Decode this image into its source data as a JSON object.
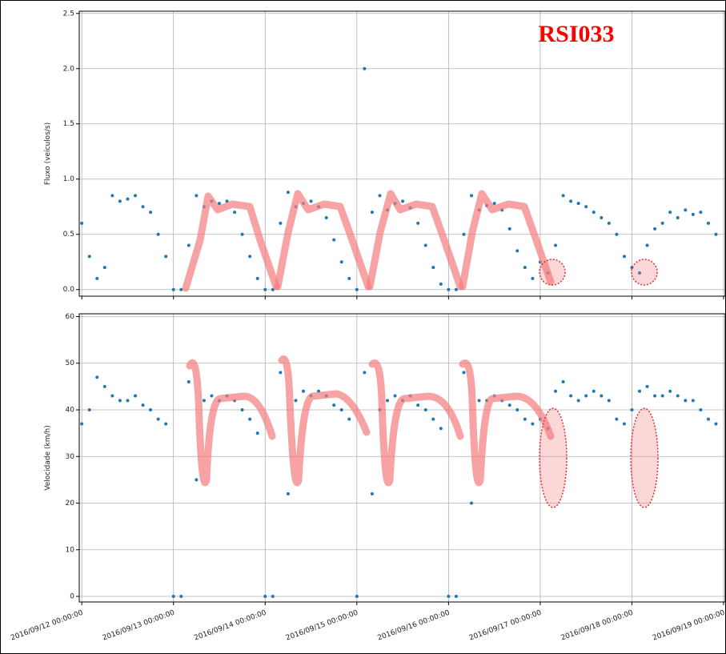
{
  "chart_data": [
    {
      "type": "scatter",
      "annotation": "RSI033",
      "ylabel": "Fluxo (veículos/s)",
      "x": [
        "2016/09/12 00:00:00",
        "2016/09/12 02:00:00",
        "2016/09/12 04:00:00",
        "2016/09/12 06:00:00",
        "2016/09/12 08:00:00",
        "2016/09/12 10:00:00",
        "2016/09/12 12:00:00",
        "2016/09/12 14:00:00",
        "2016/09/12 16:00:00",
        "2016/09/12 18:00:00",
        "2016/09/12 20:00:00",
        "2016/09/12 22:00:00",
        "2016/09/13 00:00:00",
        "2016/09/13 02:00:00",
        "2016/09/13 04:00:00",
        "2016/09/13 06:00:00",
        "2016/09/13 08:00:00",
        "2016/09/13 10:00:00",
        "2016/09/13 12:00:00",
        "2016/09/13 14:00:00",
        "2016/09/13 16:00:00",
        "2016/09/13 18:00:00",
        "2016/09/13 20:00:00",
        "2016/09/13 22:00:00",
        "2016/09/14 00:00:00",
        "2016/09/14 02:00:00",
        "2016/09/14 04:00:00",
        "2016/09/14 06:00:00",
        "2016/09/14 08:00:00",
        "2016/09/14 10:00:00",
        "2016/09/14 12:00:00",
        "2016/09/14 14:00:00",
        "2016/09/14 16:00:00",
        "2016/09/14 18:00:00",
        "2016/09/14 20:00:00",
        "2016/09/14 22:00:00",
        "2016/09/15 00:00:00",
        "2016/09/15 02:00:00",
        "2016/09/15 04:00:00",
        "2016/09/15 06:00:00",
        "2016/09/15 08:00:00",
        "2016/09/15 10:00:00",
        "2016/09/15 12:00:00",
        "2016/09/15 14:00:00",
        "2016/09/15 16:00:00",
        "2016/09/15 18:00:00",
        "2016/09/15 20:00:00",
        "2016/09/15 22:00:00",
        "2016/09/16 00:00:00",
        "2016/09/16 02:00:00",
        "2016/09/16 04:00:00",
        "2016/09/16 06:00:00",
        "2016/09/16 08:00:00",
        "2016/09/16 10:00:00",
        "2016/09/16 12:00:00",
        "2016/09/16 14:00:00",
        "2016/09/16 16:00:00",
        "2016/09/16 18:00:00",
        "2016/09/16 20:00:00",
        "2016/09/16 22:00:00",
        "2016/09/17 00:00:00",
        "2016/09/17 02:00:00",
        "2016/09/17 04:00:00",
        "2016/09/17 06:00:00",
        "2016/09/17 08:00:00",
        "2016/09/17 10:00:00",
        "2016/09/17 12:00:00",
        "2016/09/17 14:00:00",
        "2016/09/17 16:00:00",
        "2016/09/17 18:00:00",
        "2016/09/17 20:00:00",
        "2016/09/17 22:00:00",
        "2016/09/18 00:00:00",
        "2016/09/18 02:00:00",
        "2016/09/18 04:00:00",
        "2016/09/18 06:00:00",
        "2016/09/18 08:00:00",
        "2016/09/18 10:00:00",
        "2016/09/18 12:00:00",
        "2016/09/18 14:00:00",
        "2016/09/18 16:00:00",
        "2016/09/18 18:00:00",
        "2016/09/18 20:00:00",
        "2016/09/18 22:00:00"
      ],
      "values": [
        0.6,
        0.3,
        0.1,
        0.2,
        0.85,
        0.8,
        0.82,
        0.85,
        0.75,
        0.7,
        0.5,
        0.3,
        0.0,
        0.0,
        0.4,
        0.85,
        0.75,
        0.8,
        0.78,
        0.8,
        0.7,
        0.5,
        0.3,
        0.1,
        0.0,
        0.0,
        0.6,
        0.88,
        0.75,
        0.78,
        0.8,
        0.75,
        0.65,
        0.45,
        0.25,
        0.1,
        0.0,
        2.0,
        0.7,
        0.85,
        0.72,
        0.78,
        0.8,
        0.74,
        0.6,
        0.4,
        0.2,
        0.05,
        0.0,
        0.0,
        0.5,
        0.85,
        0.72,
        0.76,
        0.78,
        0.72,
        0.55,
        0.35,
        0.2,
        0.1,
        0.25,
        0.15,
        0.4,
        0.85,
        0.8,
        0.78,
        0.75,
        0.7,
        0.65,
        0.6,
        0.5,
        0.3,
        0.2,
        0.15,
        0.4,
        0.55,
        0.6,
        0.7,
        0.65,
        0.72,
        0.68,
        0.7,
        0.6,
        0.5
      ],
      "color": "#1f77b4",
      "xlim": [
        "2016/09/11 23:20:00",
        "2016/09/19 00:25:00"
      ],
      "xticks": [
        "2016/09/12 00:00:00",
        "2016/09/13 00:00:00",
        "2016/09/14 00:00:00",
        "2016/09/15 00:00:00",
        "2016/09/16 00:00:00",
        "2016/09/17 00:00:00",
        "2016/09/18 00:00:00",
        "2016/09/19 00:00:00"
      ],
      "ylim": [
        -0.06,
        2.52
      ],
      "yticks": [
        {
          "value": 0,
          "label": "0.0"
        },
        0.5,
        {
          "value": 1,
          "label": "1.0"
        },
        1.5,
        {
          "value": 2,
          "label": "2.0"
        },
        2.5
      ],
      "grid": true
    },
    {
      "type": "scatter",
      "ylabel": "Velocidade (km/h)",
      "x": [
        "2016/09/12 00:00:00",
        "2016/09/12 02:00:00",
        "2016/09/12 04:00:00",
        "2016/09/12 06:00:00",
        "2016/09/12 08:00:00",
        "2016/09/12 10:00:00",
        "2016/09/12 12:00:00",
        "2016/09/12 14:00:00",
        "2016/09/12 16:00:00",
        "2016/09/12 18:00:00",
        "2016/09/12 20:00:00",
        "2016/09/12 22:00:00",
        "2016/09/13 00:00:00",
        "2016/09/13 02:00:00",
        "2016/09/13 04:00:00",
        "2016/09/13 06:00:00",
        "2016/09/13 08:00:00",
        "2016/09/13 10:00:00",
        "2016/09/13 12:00:00",
        "2016/09/13 14:00:00",
        "2016/09/13 16:00:00",
        "2016/09/13 18:00:00",
        "2016/09/13 20:00:00",
        "2016/09/13 22:00:00",
        "2016/09/14 00:00:00",
        "2016/09/14 02:00:00",
        "2016/09/14 04:00:00",
        "2016/09/14 06:00:00",
        "2016/09/14 08:00:00",
        "2016/09/14 10:00:00",
        "2016/09/14 12:00:00",
        "2016/09/14 14:00:00",
        "2016/09/14 16:00:00",
        "2016/09/14 18:00:00",
        "2016/09/14 20:00:00",
        "2016/09/14 22:00:00",
        "2016/09/15 00:00:00",
        "2016/09/15 02:00:00",
        "2016/09/15 04:00:00",
        "2016/09/15 06:00:00",
        "2016/09/15 08:00:00",
        "2016/09/15 10:00:00",
        "2016/09/15 12:00:00",
        "2016/09/15 14:00:00",
        "2016/09/15 16:00:00",
        "2016/09/15 18:00:00",
        "2016/09/15 20:00:00",
        "2016/09/15 22:00:00",
        "2016/09/16 00:00:00",
        "2016/09/16 02:00:00",
        "2016/09/16 04:00:00",
        "2016/09/16 06:00:00",
        "2016/09/16 08:00:00",
        "2016/09/16 10:00:00",
        "2016/09/16 12:00:00",
        "2016/09/16 14:00:00",
        "2016/09/16 16:00:00",
        "2016/09/16 18:00:00",
        "2016/09/16 20:00:00",
        "2016/09/16 22:00:00",
        "2016/09/17 00:00:00",
        "2016/09/17 02:00:00",
        "2016/09/17 04:00:00",
        "2016/09/17 06:00:00",
        "2016/09/17 08:00:00",
        "2016/09/17 10:00:00",
        "2016/09/17 12:00:00",
        "2016/09/17 14:00:00",
        "2016/09/17 16:00:00",
        "2016/09/17 18:00:00",
        "2016/09/17 20:00:00",
        "2016/09/17 22:00:00",
        "2016/09/18 00:00:00",
        "2016/09/18 02:00:00",
        "2016/09/18 04:00:00",
        "2016/09/18 06:00:00",
        "2016/09/18 08:00:00",
        "2016/09/18 10:00:00",
        "2016/09/18 12:00:00",
        "2016/09/18 14:00:00",
        "2016/09/18 16:00:00",
        "2016/09/18 18:00:00",
        "2016/09/18 20:00:00",
        "2016/09/18 22:00:00"
      ],
      "values": [
        37,
        40,
        47,
        45,
        43,
        42,
        42,
        43,
        41,
        40,
        38,
        37,
        0,
        0,
        46,
        25,
        42,
        43,
        42,
        43,
        42,
        40,
        38,
        35,
        0,
        0,
        48,
        22,
        42,
        44,
        43,
        44,
        43,
        41,
        40,
        38,
        0,
        48,
        22,
        40,
        42,
        43,
        42,
        43,
        41,
        40,
        38,
        36,
        0,
        0,
        48,
        20,
        42,
        42,
        43,
        42,
        41,
        40,
        38,
        37,
        38,
        36,
        44,
        46,
        43,
        42,
        43,
        44,
        43,
        42,
        38,
        37,
        40,
        44,
        45,
        43,
        43,
        44,
        43,
        42,
        42,
        40,
        38,
        37
      ],
      "color": "#1f77b4",
      "xlim": [
        "2016/09/11 23:20:00",
        "2016/09/19 00:25:00"
      ],
      "xticks": [
        "2016/09/12 00:00:00",
        "2016/09/13 00:00:00",
        "2016/09/14 00:00:00",
        "2016/09/15 00:00:00",
        "2016/09/16 00:00:00",
        "2016/09/17 00:00:00",
        "2016/09/18 00:00:00",
        "2016/09/19 00:00:00"
      ],
      "ylim": [
        -1.2,
        60.6
      ],
      "yticks": [
        0,
        10,
        20,
        30,
        40,
        50,
        60
      ],
      "grid": true
    }
  ]
}
